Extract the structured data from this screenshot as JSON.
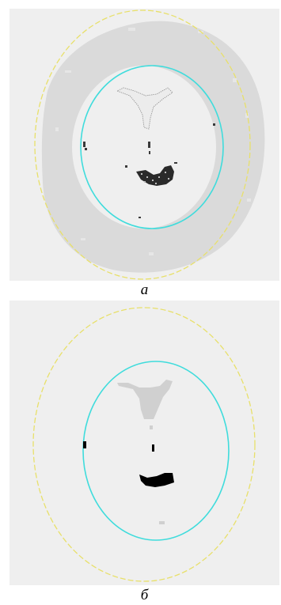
{
  "panels": [
    {
      "id": "a",
      "label": "а",
      "kind": "segmented image with speckle noise",
      "colors": {
        "background": "#efefef",
        "ring": "#dadada",
        "outer_boundary": "#e8e06a",
        "inner_boundary": "#3fdcdc",
        "dark_region": "#1c1c1c"
      }
    },
    {
      "id": "b",
      "label": "б",
      "kind": "filtered segmented image",
      "colors": {
        "background": "#efefef",
        "light_region": "#d0d0d0",
        "outer_boundary": "#e8e06a",
        "inner_boundary": "#3fdcdc",
        "dark_region": "#000000"
      }
    }
  ]
}
